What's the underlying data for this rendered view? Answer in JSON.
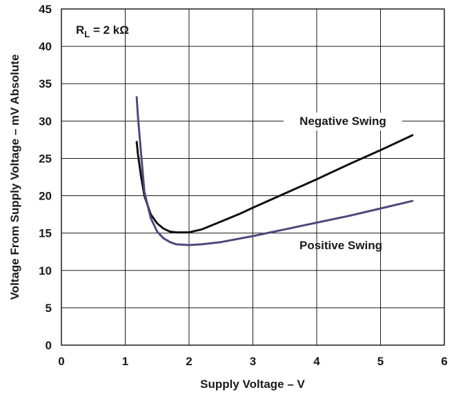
{
  "chart_data": {
    "type": "line",
    "title": "",
    "xlabel": "Supply Voltage – V",
    "ylabel": "Voltage From Supply Voltage – mV Absolute",
    "xlim": [
      0,
      6
    ],
    "ylim": [
      0,
      45
    ],
    "x_ticks": [
      0,
      1,
      2,
      3,
      4,
      5,
      6
    ],
    "y_ticks": [
      0,
      5,
      10,
      15,
      20,
      25,
      30,
      35,
      40,
      45
    ],
    "grid": true,
    "condition_label": {
      "prefix": "R",
      "subscript": "L",
      "suffix": " = 2 kΩ"
    },
    "series": [
      {
        "name": "Negative Swing",
        "color": "#111111",
        "x": [
          1.18,
          1.2,
          1.25,
          1.3,
          1.4,
          1.5,
          1.6,
          1.7,
          1.8,
          2.0,
          2.2,
          2.4,
          2.6,
          2.8,
          3.0,
          3.5,
          4.0,
          4.5,
          5.0,
          5.5
        ],
        "values": [
          27.2,
          25.5,
          22.5,
          20.0,
          17.5,
          16.3,
          15.6,
          15.2,
          15.1,
          15.1,
          15.5,
          16.2,
          16.9,
          17.6,
          18.4,
          20.3,
          22.2,
          24.2,
          26.1,
          28.1
        ]
      },
      {
        "name": "Positive Swing",
        "color": "#4a4a7c",
        "x": [
          1.18,
          1.2,
          1.25,
          1.3,
          1.4,
          1.5,
          1.6,
          1.7,
          1.8,
          2.0,
          2.2,
          2.5,
          3.0,
          3.5,
          4.0,
          4.5,
          5.0,
          5.5
        ],
        "values": [
          33.2,
          30.5,
          25.5,
          20.5,
          17.0,
          15.2,
          14.3,
          13.8,
          13.5,
          13.4,
          13.5,
          13.8,
          14.6,
          15.5,
          16.4,
          17.3,
          18.3,
          19.3
        ]
      }
    ]
  }
}
